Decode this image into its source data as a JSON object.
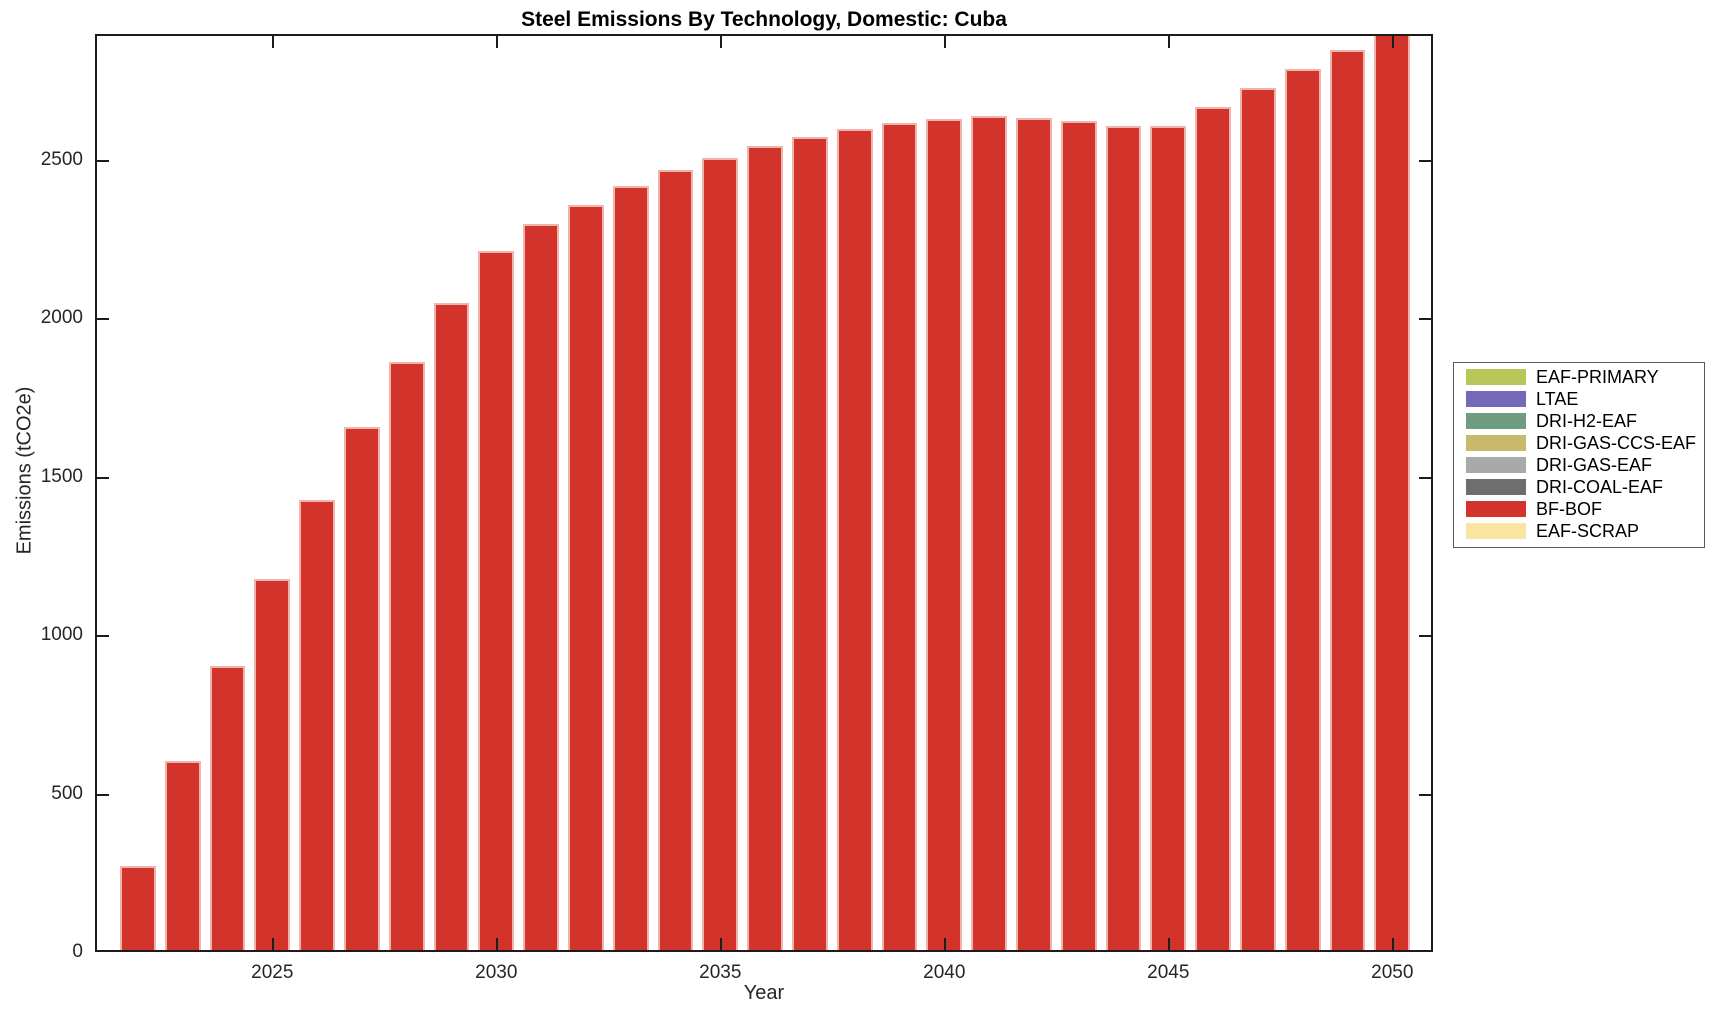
{
  "title": "Steel Emissions By Technology, Domestic: Cuba",
  "chart_data": {
    "type": "bar",
    "title": "Steel Emissions By Technology, Domestic: Cuba",
    "xlabel": "Year",
    "ylabel": "Emissions (tCO2e)",
    "x": [
      2022,
      2023,
      2024,
      2025,
      2026,
      2027,
      2028,
      2029,
      2030,
      2031,
      2032,
      2033,
      2034,
      2035,
      2036,
      2037,
      2038,
      2039,
      2040,
      2041,
      2042,
      2043,
      2044,
      2045,
      2046,
      2047,
      2048,
      2049,
      2050
    ],
    "series": [
      {
        "name": "BF-BOF",
        "color": "#d2332a",
        "values": [
          265,
          595,
          895,
          1170,
          1420,
          1650,
          1855,
          2040,
          2205,
          2290,
          2350,
          2410,
          2460,
          2500,
          2535,
          2565,
          2590,
          2610,
          2620,
          2630,
          2625,
          2615,
          2600,
          2600,
          2660,
          2720,
          2780,
          2840,
          2910
        ]
      }
    ],
    "ylim": [
      0,
      2896
    ],
    "yticks": [
      0,
      500,
      1000,
      1500,
      2000,
      2500
    ],
    "xticks": [
      2025,
      2030,
      2035,
      2040,
      2045,
      2050
    ],
    "grid": false,
    "legend_position": "outside-right",
    "legend": [
      {
        "label": "EAF-PRIMARY",
        "color": "#b9c65c"
      },
      {
        "label": "LTAE",
        "color": "#7468b8"
      },
      {
        "label": "DRI-H2-EAF",
        "color": "#6f9c81"
      },
      {
        "label": "DRI-GAS-CCS-EAF",
        "color": "#c8ba6d"
      },
      {
        "label": "DRI-GAS-EAF",
        "color": "#a9a9a9"
      },
      {
        "label": "DRI-COAL-EAF",
        "color": "#6e6e6e"
      },
      {
        "label": "BF-BOF",
        "color": "#d2332a"
      },
      {
        "label": "EAF-SCRAP",
        "color": "#fbe3a0"
      }
    ],
    "bar_edge_color": "#efb5ab"
  }
}
